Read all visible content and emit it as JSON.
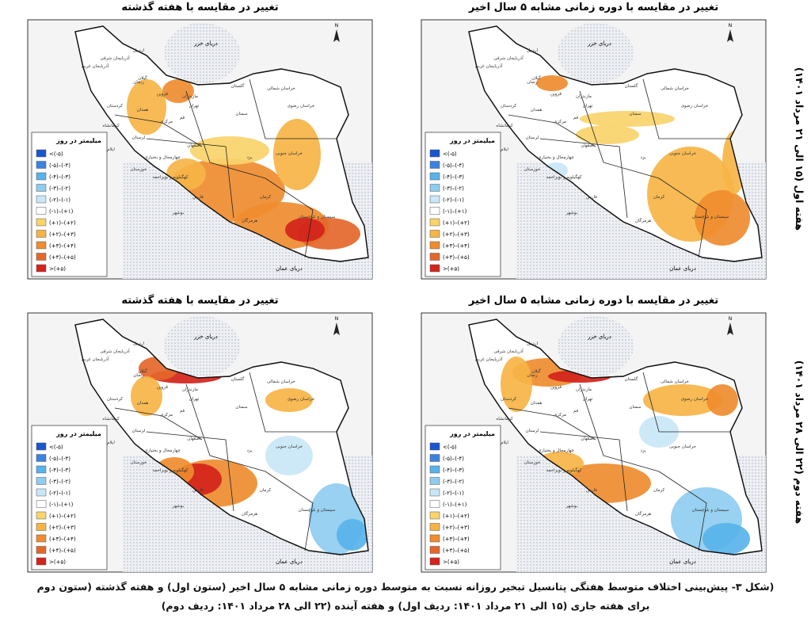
{
  "column_titles": [
    "تغییر در مقایسه با دوره زمانی مشابه ۵ سال اخیر",
    "تغییر در مقایسه با هفته گذشته"
  ],
  "row_labels": [
    "هفته اول (۱۵ الی ۲۱ مرداد ۱۴۰۱)",
    "هفته دوم (۲۲ الی ۲۸ مرداد ۱۴۰۱)"
  ],
  "legend": {
    "title": "میلیمتر در روز",
    "labels": [
      "<(-۵)",
      "(-۵)–(-۴)",
      "(-۴)–(-۳)",
      "(-۳)–(-۲)",
      "(-۲)–(-۱)",
      "(-۱)–(+۱)",
      "(+۱)–(+۲)",
      "(+۲)–(+۳)",
      "(+۳)–(+۴)",
      "(+۴)–(+۵)",
      ">(+۵)"
    ],
    "colors": [
      "#1a56d0",
      "#3b82e0",
      "#58b3ea",
      "#8fcdf0",
      "#c9e7f7",
      "#ffffff",
      "#f9d46b",
      "#f6b445",
      "#ef8c2f",
      "#e4672a",
      "#d3231b"
    ]
  },
  "seas": [
    "دریای خزر",
    "دریای عمان"
  ],
  "north": "N",
  "provinces": [
    "آذربایجان شرقی",
    "آذربایجان غربی",
    "اردبیل",
    "گیلان",
    "مازندران",
    "گلستان",
    "خراسان شمالی",
    "خراسان رضوی",
    "خراسان جنوبی",
    "سمنان",
    "تهران",
    "قزوین",
    "زنجان",
    "کردستان",
    "همدان",
    "مرکزی",
    "قم",
    "کرمانشاه",
    "لرستان",
    "ایلام",
    "اصفهان",
    "یزد",
    "خوزستان",
    "چهارمحال و بختیاری",
    "کهگیلویه و بویراحمد",
    "فارس",
    "بوشهر",
    "کرمان",
    "هرمزگان",
    "سیستان و بلوچستان"
  ],
  "caption": [
    "(شکل ۳- پیش‌بینی اختلاف متوسط هفتگی پتانسیل تبخیر روزانه نسبت به متوسط دوره زمانی مشابه ۵ سال اخیر (ستون اول) و هفته گذشته (ستون دوم",
    "برای هفته جاری (۱۵ الی ۲۱ مرداد ۱۴۰۱: ردیف اول) و هفته آینده (۲۲ الی ۲۸ مرداد ۱۴۰۱: ردیف دوم)"
  ]
}
